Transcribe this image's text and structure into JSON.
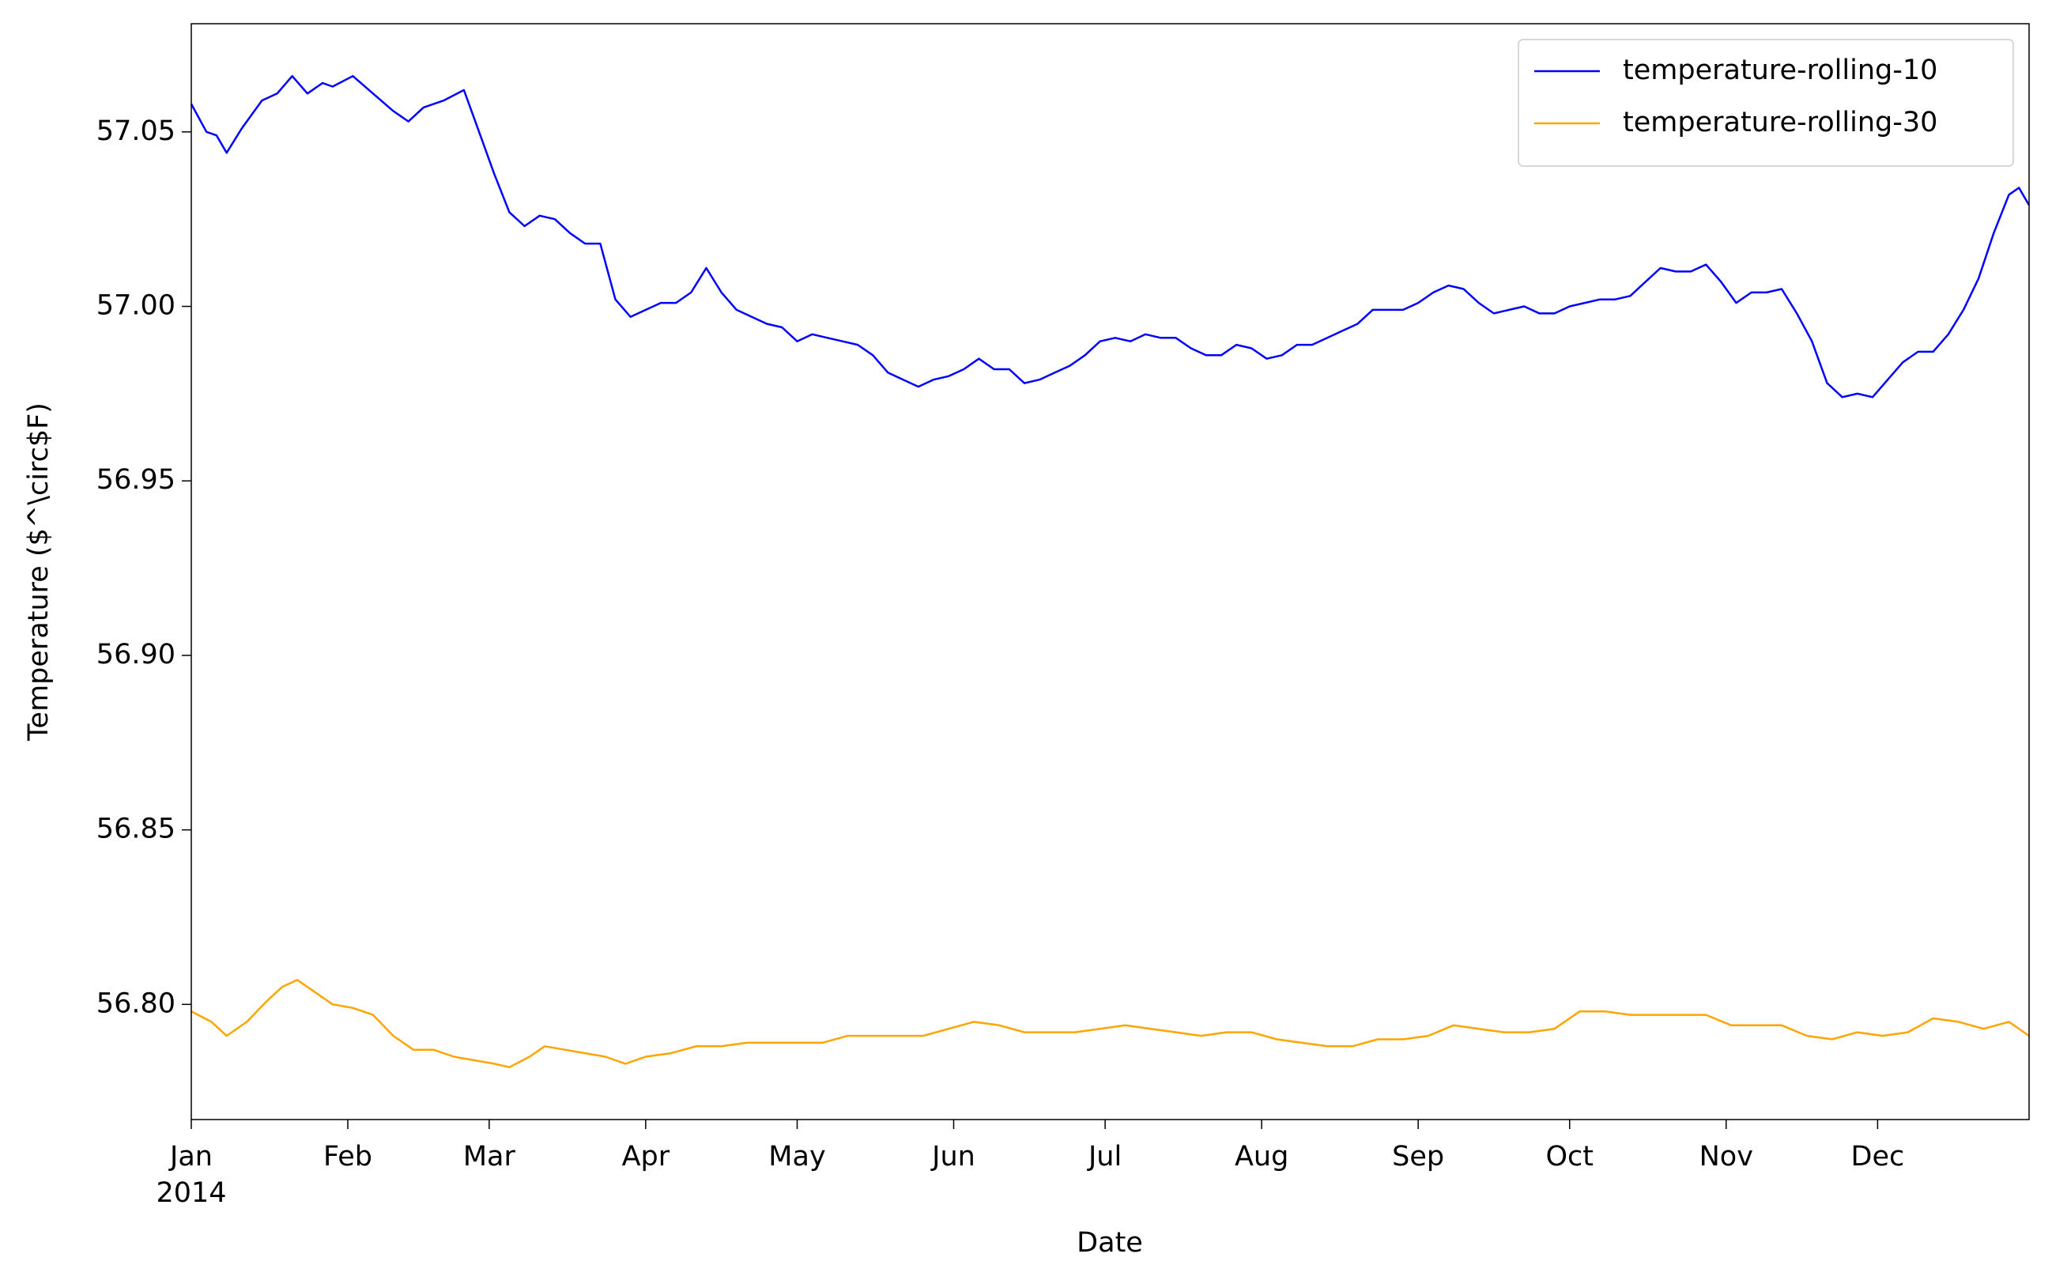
{
  "chart_data": {
    "type": "line",
    "xlabel": "Date",
    "ylabel": "Temperature ($^\\circ$F)",
    "xlim": [
      0,
      364
    ],
    "xticks": [
      {
        "value": 0,
        "label": "Jan"
      },
      {
        "value": 31,
        "label": "Feb"
      },
      {
        "value": 59,
        "label": "Mar"
      },
      {
        "value": 90,
        "label": "Apr"
      },
      {
        "value": 120,
        "label": "May"
      },
      {
        "value": 151,
        "label": "Jun"
      },
      {
        "value": 181,
        "label": "Jul"
      },
      {
        "value": 212,
        "label": "Aug"
      },
      {
        "value": 243,
        "label": "Sep"
      },
      {
        "value": 273,
        "label": "Oct"
      },
      {
        "value": 304,
        "label": "Nov"
      },
      {
        "value": 334,
        "label": "Dec"
      }
    ],
    "xtick_sublabel": "2014",
    "ylim": [
      56.767,
      57.081
    ],
    "yticks": [
      {
        "value": 56.8,
        "label": "56.80"
      },
      {
        "value": 56.85,
        "label": "56.85"
      },
      {
        "value": 56.9,
        "label": "56.90"
      },
      {
        "value": 56.95,
        "label": "56.95"
      },
      {
        "value": 57.0,
        "label": "57.00"
      },
      {
        "value": 57.05,
        "label": "57.05"
      }
    ],
    "grid": false,
    "legend": "upper right",
    "series": [
      {
        "name": "temperature-rolling-10",
        "color": "#0000ff",
        "x": [
          0,
          3,
          5,
          7,
          10,
          14,
          17,
          20,
          23,
          26,
          28,
          32,
          36,
          40,
          43,
          46,
          50,
          54,
          57,
          60,
          63,
          66,
          69,
          72,
          75,
          78,
          81,
          84,
          87,
          90,
          93,
          96,
          99,
          102,
          105,
          108,
          111,
          114,
          117,
          120,
          123,
          126,
          129,
          132,
          135,
          138,
          141,
          144,
          147,
          150,
          153,
          156,
          159,
          162,
          165,
          168,
          171,
          174,
          177,
          180,
          183,
          186,
          189,
          192,
          195,
          198,
          201,
          204,
          207,
          210,
          213,
          216,
          219,
          222,
          225,
          228,
          231,
          234,
          237,
          240,
          243,
          246,
          249,
          252,
          255,
          258,
          261,
          264,
          267,
          270,
          273,
          276,
          279,
          282,
          285,
          288,
          291,
          294,
          297,
          300,
          303,
          306,
          309,
          312,
          315,
          318,
          321,
          324,
          327,
          330,
          333,
          336,
          339,
          342,
          345,
          348,
          351,
          354,
          357,
          360,
          362,
          364
        ],
        "values": [
          57.058,
          57.05,
          57.049,
          57.044,
          57.051,
          57.059,
          57.061,
          57.066,
          57.061,
          57.064,
          57.063,
          57.066,
          57.061,
          57.056,
          57.053,
          57.057,
          57.059,
          57.062,
          57.05,
          57.038,
          57.027,
          57.023,
          57.026,
          57.025,
          57.021,
          57.018,
          57.018,
          57.002,
          56.997,
          56.999,
          57.001,
          57.001,
          57.004,
          57.011,
          57.004,
          56.999,
          56.997,
          56.995,
          56.994,
          56.99,
          56.992,
          56.991,
          56.99,
          56.989,
          56.986,
          56.981,
          56.979,
          56.977,
          56.979,
          56.98,
          56.982,
          56.985,
          56.982,
          56.982,
          56.978,
          56.979,
          56.981,
          56.983,
          56.986,
          56.99,
          56.991,
          56.99,
          56.992,
          56.991,
          56.991,
          56.988,
          56.986,
          56.986,
          56.989,
          56.988,
          56.985,
          56.986,
          56.989,
          56.989,
          56.991,
          56.993,
          56.995,
          56.999,
          56.999,
          56.999,
          57.001,
          57.004,
          57.006,
          57.005,
          57.001,
          56.998,
          56.999,
          57.0,
          56.998,
          56.998,
          57.0,
          57.001,
          57.002,
          57.002,
          57.003,
          57.007,
          57.011,
          57.01,
          57.01,
          57.012,
          57.007,
          57.001,
          57.004,
          57.004,
          57.005,
          56.998,
          56.99,
          56.978,
          56.974,
          56.975,
          56.974,
          56.979,
          56.984,
          56.987,
          56.987,
          56.992,
          56.999,
          57.008,
          57.021,
          57.032,
          57.034,
          57.029
        ]
      },
      {
        "name": "temperature-rolling-30",
        "color": "#ffa500",
        "x": [
          0,
          4,
          7,
          11,
          15,
          18,
          21,
          24,
          28,
          32,
          36,
          40,
          44,
          48,
          52,
          56,
          60,
          63,
          67,
          70,
          74,
          78,
          82,
          86,
          90,
          95,
          100,
          105,
          110,
          115,
          120,
          125,
          130,
          135,
          140,
          145,
          150,
          155,
          160,
          165,
          170,
          175,
          180,
          185,
          190,
          195,
          200,
          205,
          210,
          215,
          220,
          225,
          230,
          235,
          240,
          245,
          250,
          255,
          260,
          265,
          270,
          275,
          280,
          285,
          290,
          295,
          300,
          305,
          310,
          315,
          320,
          325,
          330,
          335,
          340,
          345,
          350,
          355,
          360,
          364
        ],
        "values": [
          56.798,
          56.795,
          56.791,
          56.795,
          56.801,
          56.805,
          56.807,
          56.804,
          56.8,
          56.799,
          56.797,
          56.791,
          56.787,
          56.787,
          56.785,
          56.784,
          56.783,
          56.782,
          56.785,
          56.788,
          56.787,
          56.786,
          56.785,
          56.783,
          56.785,
          56.786,
          56.788,
          56.788,
          56.789,
          56.789,
          56.789,
          56.789,
          56.791,
          56.791,
          56.791,
          56.791,
          56.793,
          56.795,
          56.794,
          56.792,
          56.792,
          56.792,
          56.793,
          56.794,
          56.793,
          56.792,
          56.791,
          56.792,
          56.792,
          56.79,
          56.789,
          56.788,
          56.788,
          56.79,
          56.79,
          56.791,
          56.794,
          56.793,
          56.792,
          56.792,
          56.793,
          56.798,
          56.798,
          56.797,
          56.797,
          56.797,
          56.797,
          56.794,
          56.794,
          56.794,
          56.791,
          56.79,
          56.792,
          56.791,
          56.792,
          56.796,
          56.795,
          56.793,
          56.795,
          56.791
        ]
      }
    ]
  }
}
